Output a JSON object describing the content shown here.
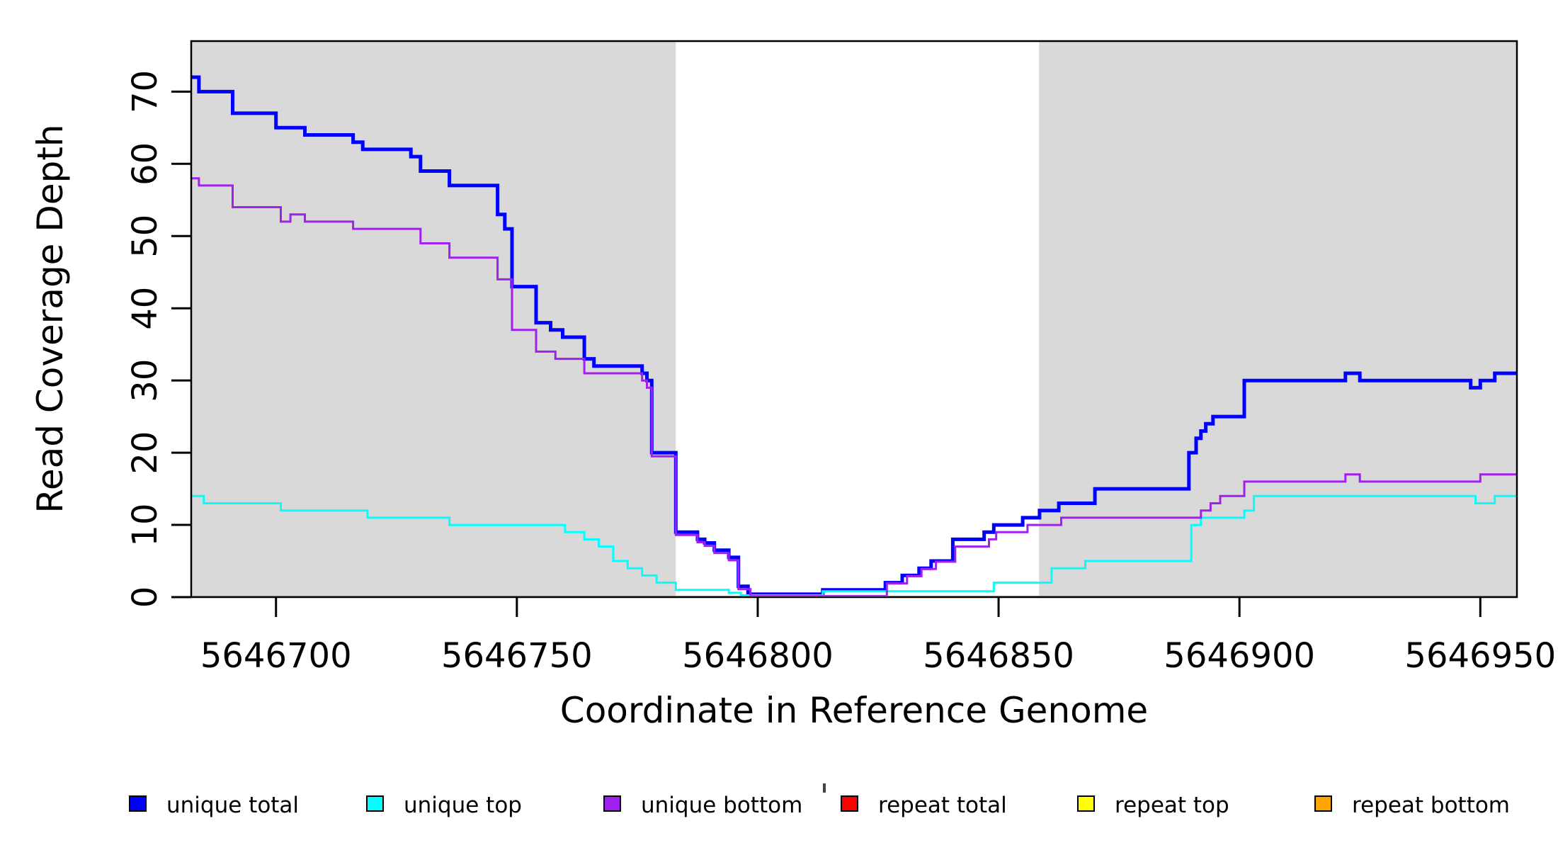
{
  "figure": {
    "background": "#ffffff",
    "band_color": "#d9d9d9",
    "border_color": "#000000",
    "axis_color": "#000000"
  },
  "chart_data": {
    "type": "line",
    "step": true,
    "title": "",
    "xlabel": "Coordinate in Reference Genome",
    "ylabel": "Read Coverage Depth",
    "xlim": [
      5646682.4,
      5646957.6
    ],
    "ylim": [
      0,
      77
    ],
    "x_ticks": [
      5646700,
      5646750,
      5646800,
      5646850,
      5646900,
      5646950
    ],
    "y_ticks": [
      0,
      10,
      20,
      30,
      40,
      50,
      60,
      70
    ],
    "grid": false,
    "legend_position": "bottom",
    "shaded_regions": [
      {
        "x0": 5646682.4,
        "x1": 5646783,
        "color": "#d9d9d9"
      },
      {
        "x0": 5646858.4,
        "x1": 5646957.6,
        "color": "#d9d9d9"
      }
    ],
    "series": [
      {
        "name": "unique total",
        "color": "#0000ff",
        "width": 5,
        "points": [
          [
            5646682.4,
            72
          ],
          [
            5646684,
            70
          ],
          [
            5646691,
            67
          ],
          [
            5646700,
            65
          ],
          [
            5646706,
            64
          ],
          [
            5646716,
            63
          ],
          [
            5646718,
            62
          ],
          [
            5646728,
            61
          ],
          [
            5646730,
            59
          ],
          [
            5646736,
            57
          ],
          [
            5646746,
            53
          ],
          [
            5646747.5,
            51
          ],
          [
            5646749,
            43
          ],
          [
            5646754,
            38
          ],
          [
            5646757,
            37
          ],
          [
            5646759.5,
            36
          ],
          [
            5646764,
            33
          ],
          [
            5646766,
            32
          ],
          [
            5646776,
            31
          ],
          [
            5646777,
            30
          ],
          [
            5646778,
            20
          ],
          [
            5646783,
            9
          ],
          [
            5646787.5,
            8
          ],
          [
            5646789,
            7.5
          ],
          [
            5646791,
            6.5
          ],
          [
            5646794,
            5.5
          ],
          [
            5646796,
            1.5
          ],
          [
            5646798,
            0.4
          ],
          [
            5646813.5,
            1
          ],
          [
            5646826.5,
            2
          ],
          [
            5646830,
            3
          ],
          [
            5646833.5,
            4
          ],
          [
            5646836,
            5
          ],
          [
            5646840.5,
            8
          ],
          [
            5646847,
            9
          ],
          [
            5646849,
            10
          ],
          [
            5646855,
            11
          ],
          [
            5646858.5,
            12
          ],
          [
            5646862.5,
            13
          ],
          [
            5646870,
            15
          ],
          [
            5646889.5,
            20
          ],
          [
            5646891,
            22
          ],
          [
            5646892,
            23
          ],
          [
            5646893,
            24
          ],
          [
            5646894.5,
            25
          ],
          [
            5646901,
            30
          ],
          [
            5646922,
            31
          ],
          [
            5646925,
            30
          ],
          [
            5646948,
            29
          ],
          [
            5646950,
            30
          ],
          [
            5646953,
            31
          ]
        ]
      },
      {
        "name": "unique top",
        "color": "#00ffff",
        "width": 3,
        "points": [
          [
            5646682.4,
            14
          ],
          [
            5646685,
            13
          ],
          [
            5646701,
            12
          ],
          [
            5646719,
            11
          ],
          [
            5646736,
            10
          ],
          [
            5646760,
            9
          ],
          [
            5646764,
            8
          ],
          [
            5646767,
            7
          ],
          [
            5646770,
            5
          ],
          [
            5646773,
            4
          ],
          [
            5646776,
            3
          ],
          [
            5646779,
            2
          ],
          [
            5646783,
            1
          ],
          [
            5646794,
            0.6
          ],
          [
            5646796.5,
            0.25
          ],
          [
            5646813.5,
            0.8
          ],
          [
            5646849,
            2
          ],
          [
            5646861,
            4
          ],
          [
            5646868,
            5
          ],
          [
            5646890,
            10
          ],
          [
            5646892,
            11
          ],
          [
            5646901,
            12
          ],
          [
            5646903,
            14
          ],
          [
            5646949,
            13
          ],
          [
            5646953,
            14
          ]
        ]
      },
      {
        "name": "unique bottom",
        "color": "#a020f0",
        "width": 3,
        "points": [
          [
            5646682.4,
            58
          ],
          [
            5646684,
            57
          ],
          [
            5646691,
            54
          ],
          [
            5646701,
            52
          ],
          [
            5646703,
            53
          ],
          [
            5646706,
            52
          ],
          [
            5646716,
            51
          ],
          [
            5646730,
            49
          ],
          [
            5646736,
            47
          ],
          [
            5646746,
            44
          ],
          [
            5646749,
            37
          ],
          [
            5646754,
            34
          ],
          [
            5646758,
            33
          ],
          [
            5646764,
            31
          ],
          [
            5646776,
            30
          ],
          [
            5646777,
            29
          ],
          [
            5646778,
            19.5
          ],
          [
            5646783,
            8.6
          ],
          [
            5646787.5,
            7.6
          ],
          [
            5646789,
            7.1
          ],
          [
            5646791,
            6.1
          ],
          [
            5646794,
            5.1
          ],
          [
            5646796,
            1.1
          ],
          [
            5646798.5,
            0.15
          ],
          [
            5646826.8,
            1.9
          ],
          [
            5646831,
            2.9
          ],
          [
            5646834,
            3.9
          ],
          [
            5646837,
            4.9
          ],
          [
            5646841,
            7
          ],
          [
            5646848,
            8
          ],
          [
            5646849.5,
            9
          ],
          [
            5646856,
            10
          ],
          [
            5646863,
            11
          ],
          [
            5646892,
            12
          ],
          [
            5646894,
            13
          ],
          [
            5646896,
            14
          ],
          [
            5646901,
            16
          ],
          [
            5646922,
            17
          ],
          [
            5646925,
            16
          ],
          [
            5646950,
            17
          ]
        ]
      },
      {
        "name": "repeat total",
        "color": "#ff0000",
        "width": 3,
        "points": [
          [
            5646682.4,
            0
          ]
        ]
      },
      {
        "name": "repeat top",
        "color": "#ffff00",
        "width": 3,
        "points": [
          [
            5646682.4,
            0
          ]
        ]
      },
      {
        "name": "repeat bottom",
        "color": "#ffa500",
        "width": 4,
        "points": [
          [
            5646682.4,
            0
          ]
        ]
      }
    ]
  },
  "legend": {
    "items": [
      {
        "label": "unique total",
        "color": "#0000ff"
      },
      {
        "label": "unique top",
        "color": "#00ffff"
      },
      {
        "label": "unique bottom",
        "color": "#a020f0"
      },
      {
        "label": "repeat total",
        "color": "#ff0000"
      },
      {
        "label": "repeat top",
        "color": "#ffff00"
      },
      {
        "label": "repeat bottom",
        "color": "#ffa500"
      }
    ]
  }
}
